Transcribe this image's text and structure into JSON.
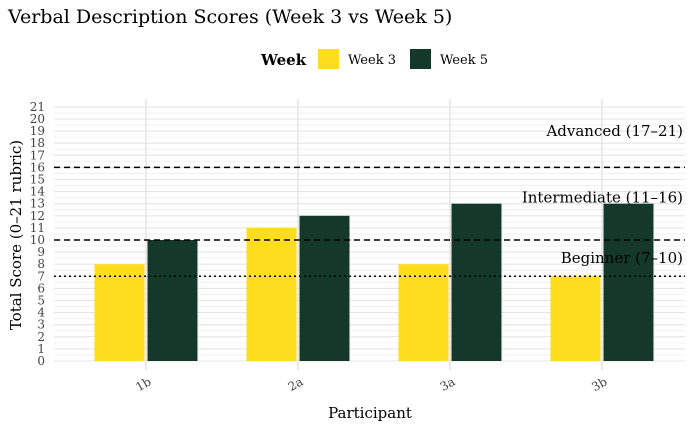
{
  "chart_data": {
    "type": "bar",
    "title": "Verbal Description Scores (Week 3 vs Week 5)",
    "xlabel": "Participant",
    "ylabel": "Total Score (0–21 rubric)",
    "categories": [
      "1b",
      "2a",
      "3a",
      "3b"
    ],
    "series": [
      {
        "name": "Week 3",
        "values": [
          8,
          11,
          8,
          7
        ],
        "color": "#FDDD1E"
      },
      {
        "name": "Week 5",
        "values": [
          10,
          12,
          13,
          13
        ],
        "color": "#14392A"
      }
    ],
    "ylim": [
      0,
      21
    ],
    "y_ticks": [
      0,
      1,
      2,
      3,
      4,
      5,
      6,
      7,
      8,
      9,
      10,
      11,
      12,
      13,
      14,
      15,
      16,
      17,
      18,
      19,
      20,
      21
    ],
    "legend": {
      "title": "Week",
      "position": "top"
    },
    "grid": true,
    "reference_lines": [
      {
        "value": 16,
        "style": "dashed"
      },
      {
        "value": 10,
        "style": "dashed"
      },
      {
        "value": 7,
        "style": "dotted"
      }
    ],
    "annotations": [
      {
        "text": "Advanced (17–21)",
        "value": 19
      },
      {
        "text": "Intermediate (11–16)",
        "value": 13.5
      },
      {
        "text": "Beginner (7–10)",
        "value": 8.5
      }
    ]
  }
}
